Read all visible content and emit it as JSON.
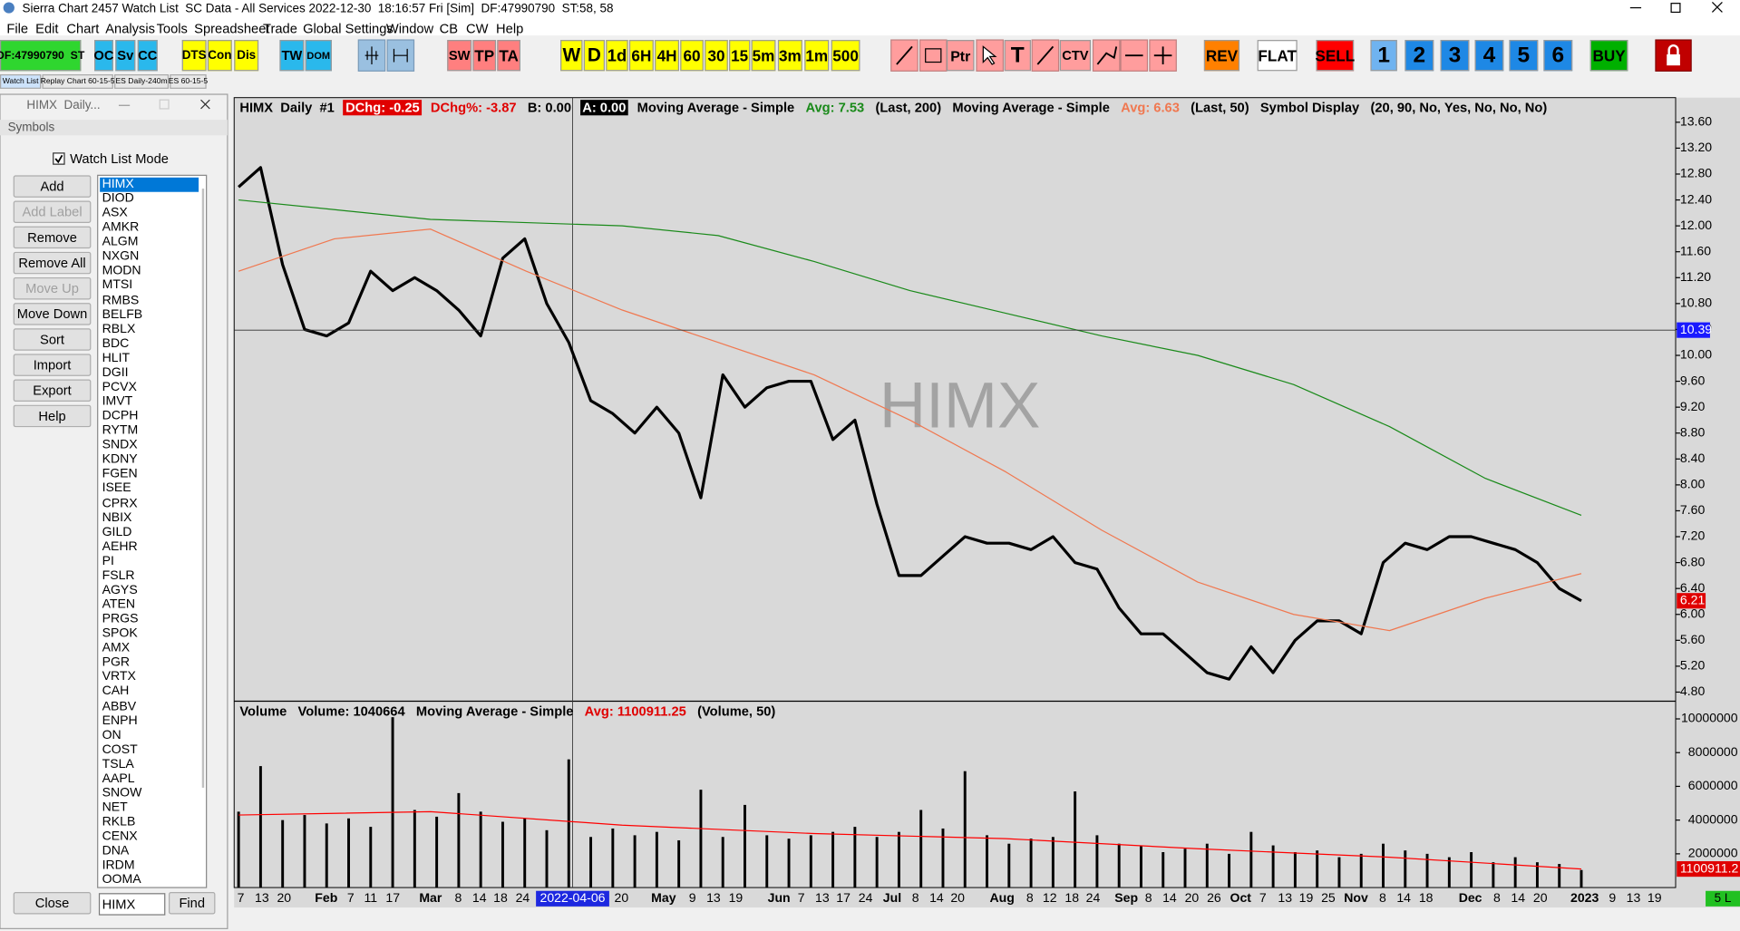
{
  "window": {
    "title": "Sierra Chart 2457 Watch List  SC Data - All Services 2022-12-30  18:16:57 Fri [Sim]  DF:47990790  ST:58, 58"
  },
  "menu": [
    "File",
    "Edit",
    "Chart",
    "Analysis",
    "Tools",
    "Spreadsheet",
    "Trade",
    "Global Settings",
    "Window",
    "CB",
    "CW",
    "Help"
  ],
  "toolbar": [
    {
      "label": "DF:47990790  ST",
      "bg": "#2fd62f"
    },
    {
      "label": "OC",
      "bg": "#2ab8ec"
    },
    {
      "label": "Sv",
      "bg": "#2ab8ec"
    },
    {
      "label": "CC",
      "bg": "#2ab8ec"
    },
    {
      "label": "DTS",
      "bg": "#ffff00"
    },
    {
      "label": "Con",
      "bg": "#ffff00"
    },
    {
      "label": "Dis",
      "bg": "#ffff00"
    },
    {
      "label": "TW",
      "bg": "#2ab8ec"
    },
    {
      "label": "DOM",
      "bg": "#2ab8ec"
    },
    {
      "label": "SW",
      "bg": "#ff7f7f"
    },
    {
      "label": "TP",
      "bg": "#ff7f7f"
    },
    {
      "label": "TA",
      "bg": "#ff7f7f"
    },
    {
      "label": "W",
      "bg": "#ffff00"
    },
    {
      "label": "D",
      "bg": "#ffff00"
    },
    {
      "label": "1d",
      "bg": "#ffff00"
    },
    {
      "label": "6H",
      "bg": "#ffff00"
    },
    {
      "label": "4H",
      "bg": "#ffff00"
    },
    {
      "label": "60",
      "bg": "#ffff00"
    },
    {
      "label": "30",
      "bg": "#ffff00"
    },
    {
      "label": "15",
      "bg": "#ffff00"
    },
    {
      "label": "5m",
      "bg": "#ffff00"
    },
    {
      "label": "3m",
      "bg": "#ffff00"
    },
    {
      "label": "1m",
      "bg": "#ffff00"
    },
    {
      "label": "500",
      "bg": "#ffff00"
    },
    {
      "label": "Ptr",
      "bg": "#ff9d9d"
    },
    {
      "label": "T",
      "bg": "#ff9d9d"
    },
    {
      "label": "CTV",
      "bg": "#ff9d9d"
    },
    {
      "label": "REV",
      "bg": "#ff8000"
    },
    {
      "label": "FLAT",
      "bg": "#ffffff"
    },
    {
      "label": "SELL",
      "bg": "#ff0000"
    },
    {
      "label": "1",
      "bg": "#6fb3f0"
    },
    {
      "label": "2",
      "bg": "#1e88e5"
    },
    {
      "label": "3",
      "bg": "#1e88e5"
    },
    {
      "label": "4",
      "bg": "#1e88e5"
    },
    {
      "label": "5",
      "bg": "#1e88e5"
    },
    {
      "label": "6",
      "bg": "#1e88e5"
    },
    {
      "label": "BUY",
      "bg": "#00b000"
    }
  ],
  "tabs": [
    {
      "label": "Watch List",
      "active": true
    },
    {
      "label": "Replay Chart 60-15-5",
      "active": false
    },
    {
      "label": "ES Daily-240m",
      "active": false
    },
    {
      "label": "ES 60-15-5",
      "active": false
    }
  ],
  "watch_list": {
    "title": "HIMX  Daily...",
    "section": "Symbols",
    "mode_label": "Watch List Mode",
    "mode_checked": true,
    "buttons": [
      {
        "label": "Add",
        "enabled": true
      },
      {
        "label": "Add Label",
        "enabled": false
      },
      {
        "label": "Remove",
        "enabled": true
      },
      {
        "label": "Remove All",
        "enabled": true
      },
      {
        "label": "Move Up",
        "enabled": false
      },
      {
        "label": "Move Down",
        "enabled": true
      },
      {
        "label": "Sort",
        "enabled": true
      },
      {
        "label": "Import",
        "enabled": true
      },
      {
        "label": "Export",
        "enabled": true
      },
      {
        "label": "Help",
        "enabled": true
      }
    ],
    "symbols": [
      "HIMX",
      "DIOD",
      "ASX",
      "AMKR",
      "ALGM",
      "NXGN",
      "MODN",
      "MTSI",
      "RMBS",
      "BELFB",
      "RBLX",
      "BDC",
      "HLIT",
      "DGII",
      "PCVX",
      "IMVT",
      "DCPH",
      "RYTM",
      "SNDX",
      "KDNY",
      "FGEN",
      "ISEE",
      "CPRX",
      "NBIX",
      "GILD",
      "AEHR",
      "PI",
      "FSLR",
      "AGYS",
      "ATEN",
      "PRGS",
      "SPOK",
      "AMX",
      "PGR",
      "VRTX",
      "CAH",
      "ABBV",
      "ENPH",
      "ON",
      "COST",
      "TSLA",
      "AAPL",
      "SNOW",
      "NET",
      "RKLB",
      "CENX",
      "DNA",
      "IRDM",
      "OOMA"
    ],
    "selected": 0,
    "close": "Close",
    "search": "HIMX",
    "find": "Find"
  },
  "chart_data": [
    {
      "type": "line",
      "watermark": "HIMX",
      "header": [
        {
          "text": "HIMX  Daily  #1",
          "color": "#000000"
        },
        {
          "text": "DChg: -0.25",
          "color": "#ffffff",
          "bg": "#e00000"
        },
        {
          "text": "DChg%: -3.87",
          "color": "#e00000"
        },
        {
          "text": "B: 0.00",
          "color": "#000000"
        },
        {
          "text": "A: 0.00",
          "color": "#ffffff",
          "bg": "#000000"
        },
        {
          "text": "Moving Average - Simple",
          "color": "#000000"
        },
        {
          "text": "Avg: 7.53",
          "color": "#1a8a1a"
        },
        {
          "text": "(Last, 200)",
          "color": "#000000"
        },
        {
          "text": "Moving Average - Simple",
          "color": "#000000"
        },
        {
          "text": "Avg: 6.63",
          "color": "#f07850"
        },
        {
          "text": "(Last, 50)",
          "color": "#000000"
        },
        {
          "text": "Symbol Display",
          "color": "#000000"
        },
        {
          "text": "(20, 90, No, Yes, No, No, No)",
          "color": "#000000"
        }
      ],
      "series": [
        {
          "color": "#000000",
          "values": [
            12.6,
            12.9,
            11.4,
            10.4,
            10.3,
            10.5,
            11.3,
            11.0,
            11.2,
            11.0,
            10.7,
            10.3,
            11.5,
            11.8,
            10.8,
            10.2,
            9.3,
            9.1,
            8.8,
            9.2,
            8.8,
            7.8,
            9.7,
            9.2,
            9.5,
            9.6,
            9.6,
            8.7,
            9.0,
            7.7,
            6.6,
            6.6,
            6.9,
            7.2,
            7.1,
            7.1,
            7.0,
            7.2,
            6.8,
            6.7,
            6.1,
            5.7,
            5.7,
            5.4,
            5.1,
            5.0,
            5.5,
            5.1,
            5.6,
            5.9,
            5.9,
            5.7,
            6.8,
            7.1,
            7.0,
            7.2,
            7.2,
            7.1,
            7.0,
            6.8,
            6.4,
            6.21
          ]
        },
        {
          "color": "#1a8a1a",
          "values": [
            12.4,
            12.25,
            12.1,
            12.05,
            12.0,
            11.85,
            11.45,
            11.0,
            10.65,
            10.3,
            10.0,
            9.55,
            8.9,
            8.1,
            7.53
          ]
        },
        {
          "color": "#f07850",
          "values": [
            11.3,
            11.8,
            11.95,
            11.3,
            10.7,
            10.2,
            9.7,
            9.0,
            8.2,
            7.3,
            6.5,
            6.0,
            5.75,
            6.25,
            6.63
          ]
        }
      ],
      "ylim": [
        4.66,
        13.98
      ],
      "yticks": [
        {
          "value": 4.8,
          "label": "4.80"
        },
        {
          "value": 5.2,
          "label": "5.20"
        },
        {
          "value": 5.6,
          "label": "5.60"
        },
        {
          "value": 6,
          "label": "6.00"
        },
        {
          "value": 6.4,
          "label": "6.40"
        },
        {
          "value": 6.8,
          "label": "6.80"
        },
        {
          "value": 7.2,
          "label": "7.20"
        },
        {
          "value": 7.6,
          "label": "7.60"
        },
        {
          "value": 8,
          "label": "8.00"
        },
        {
          "value": 8.4,
          "label": "8.40"
        },
        {
          "value": 8.8,
          "label": "8.80"
        },
        {
          "value": 9.2,
          "label": "9.20"
        },
        {
          "value": 9.6,
          "label": "9.60"
        },
        {
          "value": 10,
          "label": "10.00"
        },
        {
          "value": 10.4,
          "label": "10.40"
        },
        {
          "value": 10.8,
          "label": "10.80"
        },
        {
          "value": 11.2,
          "label": "11.20"
        },
        {
          "value": 11.6,
          "label": "11.60"
        },
        {
          "value": 12,
          "label": "12.00"
        },
        {
          "value": 12.4,
          "label": "12.40"
        },
        {
          "value": 12.8,
          "label": "12.80"
        },
        {
          "value": 13.2,
          "label": "13.20"
        },
        {
          "value": 13.6,
          "label": "13.60"
        }
      ],
      "crosshair_price": 10.39,
      "crosshair_color": "#1a1aff",
      "last_price": 6.21,
      "last_color": "#e00000"
    },
    {
      "type": "bar",
      "header": [
        {
          "text": "Volume",
          "color": "#000000"
        },
        {
          "text": "Volume: 1040664",
          "color": "#000000"
        },
        {
          "text": "Moving Average - Simple",
          "color": "#000000"
        },
        {
          "text": "Avg: 1100911.25",
          "color": "#e00000"
        },
        {
          "text": "(Volume, 50)",
          "color": "#000000"
        }
      ],
      "series": [
        {
          "color": "#000000",
          "style": "bar",
          "values": [
            4500000,
            7200000,
            4000000,
            4300000,
            3800000,
            4100000,
            3600000,
            10100000,
            4600000,
            4200000,
            5600000,
            4500000,
            3900000,
            4100000,
            3400000,
            7600000,
            3000000,
            3500000,
            3100000,
            3300000,
            2800000,
            5800000,
            3000000,
            4900000,
            3100000,
            2900000,
            3100000,
            3300000,
            3600000,
            3000000,
            3300000,
            4600000,
            3500000,
            6900000,
            3100000,
            2600000,
            2900000,
            3000000,
            5700000,
            3100000,
            2600000,
            2500000,
            2100000,
            2300000,
            2600000,
            2000000,
            3300000,
            2500000,
            2100000,
            2200000,
            1800000,
            2000000,
            2600000,
            2200000,
            2000000,
            1800000,
            2100000,
            1500000,
            1800000,
            1500000,
            1400000,
            1040664
          ]
        },
        {
          "color": "#ff0000",
          "style": "line",
          "values": [
            4300000,
            4500000,
            3700000,
            3200000,
            2900000,
            2300000,
            1800000,
            1100911.25
          ]
        }
      ],
      "ylim": [
        0,
        11050000
      ],
      "yticks": [
        2000000,
        4000000,
        6000000,
        8000000,
        10000000
      ],
      "last_ma_label": "1100911.2",
      "x_labels": [
        "7",
        "13",
        "20",
        "Feb",
        "7",
        "11",
        "17",
        "Mar",
        "8",
        "14",
        "18",
        "24",
        "20",
        "May",
        "9",
        "13",
        "19",
        "Jun",
        "7",
        "13",
        "17",
        "24",
        "Jul",
        "8",
        "14",
        "20",
        "Aug",
        "8",
        "12",
        "18",
        "24",
        "Sep",
        "8",
        "14",
        "20",
        "26",
        "Oct",
        "7",
        "13",
        "19",
        "25",
        "Nov",
        "8",
        "14",
        "18",
        "Dec",
        "8",
        "14",
        "20",
        "2023",
        "9",
        "13",
        "19"
      ],
      "crosshair_date": "2022-04-06",
      "crosshair_date_color": "#1d28e0"
    }
  ],
  "status": "5 L"
}
